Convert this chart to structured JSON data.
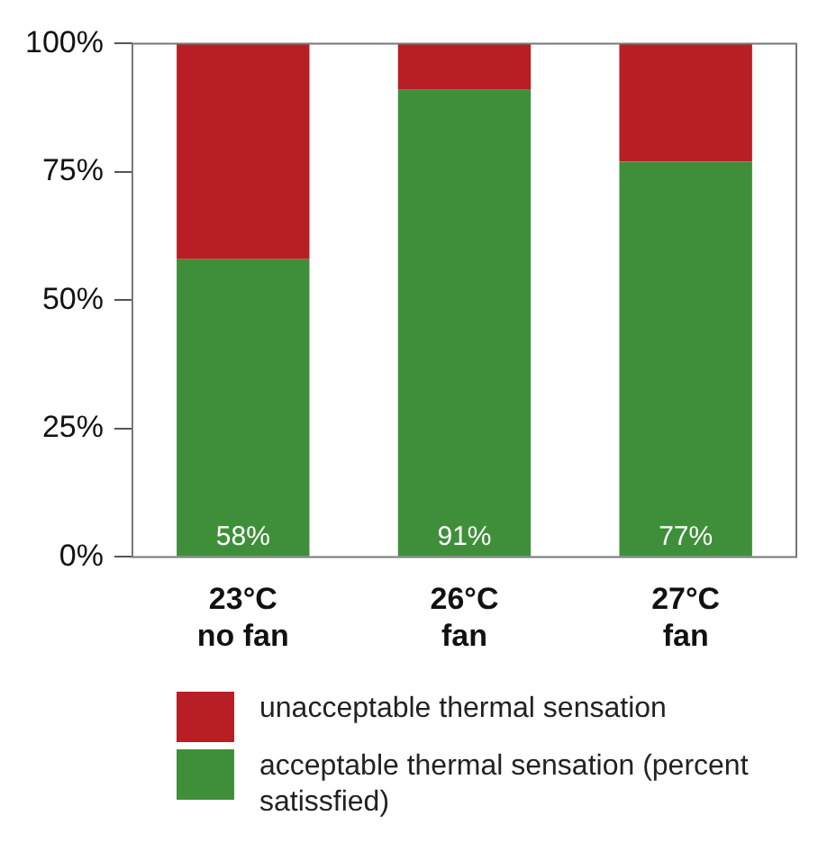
{
  "chart_data": {
    "type": "bar",
    "stacked": true,
    "categories": [
      "23°C\nno fan",
      "26°C\nfan",
      "27°C\nfan"
    ],
    "series": [
      {
        "name": "acceptable thermal sensation (percent satissfied)",
        "color": "#3f8f3a",
        "values": [
          58,
          91,
          77
        ],
        "value_labels": [
          "58%",
          "91%",
          "77%"
        ]
      },
      {
        "name": "unacceptable thermal sensation",
        "color": "#b81f24",
        "values": [
          42,
          9,
          23
        ]
      }
    ],
    "ylim": [
      0,
      100
    ],
    "yticks": [
      {
        "value": 0,
        "label": "0%"
      },
      {
        "value": 25,
        "label": "25%"
      },
      {
        "value": 50,
        "label": "50%"
      },
      {
        "value": 75,
        "label": "75%"
      },
      {
        "value": 100,
        "label": "100%"
      }
    ],
    "grid": false,
    "legend": "bottom"
  }
}
